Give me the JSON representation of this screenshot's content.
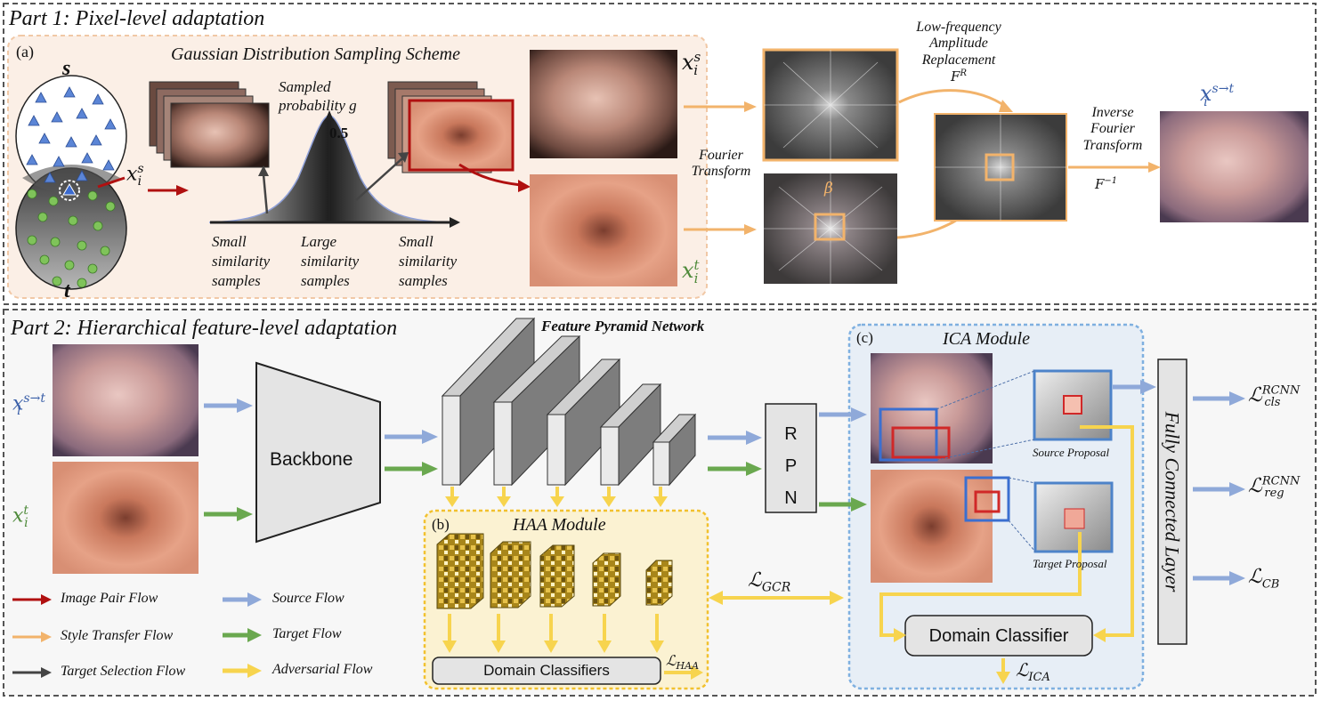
{
  "part1": {
    "title": "Part 1: Pixel-level adaptation",
    "panel_tag": "(a)",
    "gaussian_title": "Gaussian Distribution Sampling Scheme",
    "domain_s": "s",
    "domain_t": "t",
    "sampled_prob": [
      "Sampled",
      "probability g"
    ],
    "peak_value": "0.5",
    "samples": [
      [
        "Small",
        "similarity",
        "samples"
      ],
      [
        "Large",
        "similarity",
        "samples"
      ],
      [
        "Small",
        "similarity",
        "samples"
      ]
    ],
    "fourier": [
      "Fourier",
      "Transform"
    ],
    "lowfreq": [
      "Low-frequency",
      "Amplitude",
      "Replacement"
    ],
    "lowfreq_sym": "F",
    "lowfreq_sup": "R",
    "inverse": [
      "Inverse",
      "Fourier",
      "Transform"
    ],
    "inverse_sym": "F",
    "inverse_sup": "−1",
    "beta": "β",
    "x_sym": "x",
    "sub_i": "i",
    "sup_s": "s",
    "sup_t": "t",
    "sup_st": "s→t"
  },
  "part2": {
    "title": "Part 2: Hierarchical feature-level adaptation",
    "backbone": "Backbone",
    "fpn": "Feature Pyramid Network",
    "rpn": [
      "R",
      "P",
      "N"
    ],
    "haa_tag": "(b)",
    "haa_title": "HAA Module",
    "domain_classifiers": "Domain Classifiers",
    "ica_tag": "(c)",
    "ica_title": "ICA Module",
    "source_proposal": "Source Proposal",
    "target_proposal": "Target Proposal",
    "domain_classifier": "Domain Classifier",
    "fc_layer": "Fully Connected Layer",
    "loss_sym": "ℒ",
    "loss_haa": "HAA",
    "loss_gcr": "GCR",
    "loss_ica": "ICA",
    "loss_cls_sub": "cls",
    "loss_reg_sub": "reg",
    "loss_rcnn_sup": "RCNN",
    "loss_cb": "CB"
  },
  "legend": {
    "image_pair": "Image Pair Flow",
    "style_transfer": "Style Transfer Flow",
    "target_selection": "Target Selection Flow",
    "source": "Source Flow",
    "target": "Target Flow",
    "adversarial": "Adversarial Flow"
  },
  "colors": {
    "image_pair": "#b01010",
    "style_transfer": "#f2b36b",
    "target_selection": "#444444",
    "source": "#8fa9d9",
    "target": "#6aa84f",
    "adversarial": "#f7d44e",
    "math_blue": "#3a5fa8",
    "math_green": "#4e8a3a"
  }
}
